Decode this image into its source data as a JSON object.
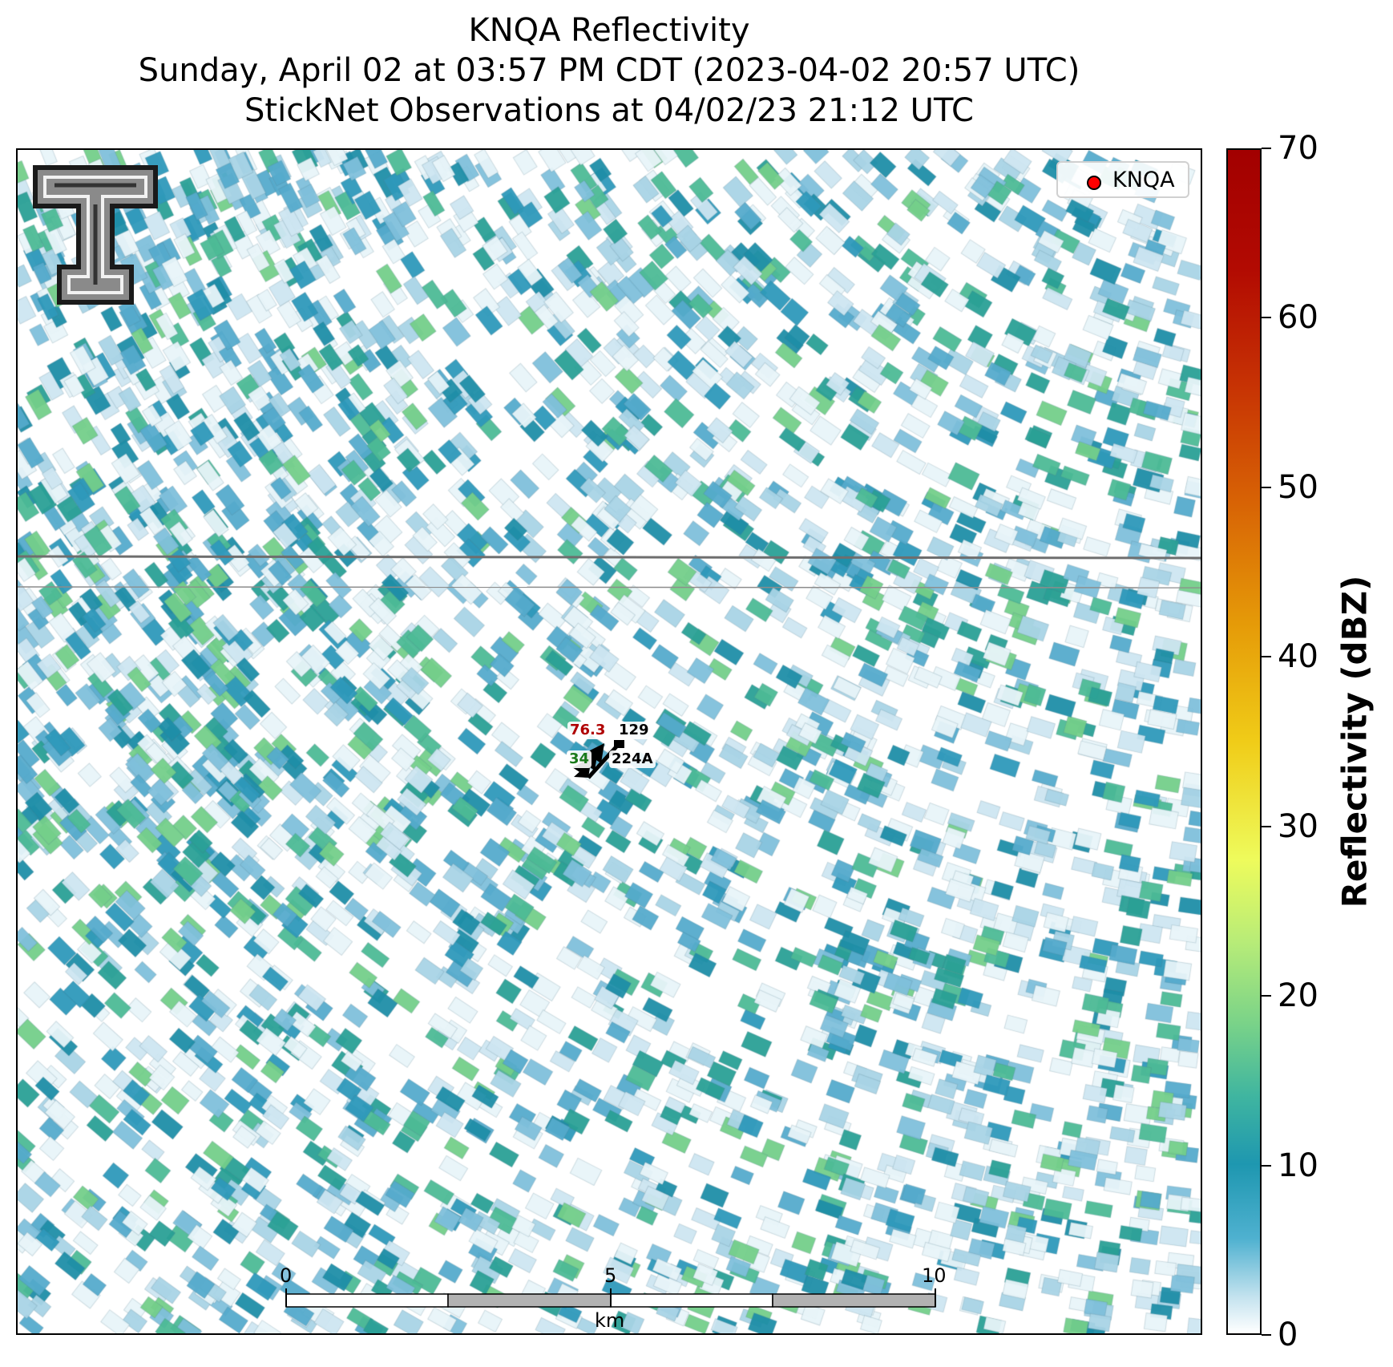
{
  "title": {
    "line1": "KNQA Reflectivity",
    "line2": "Sunday, April 02 at 03:57 PM CDT (2023-04-02 20:57 UTC)",
    "line3": "StickNet Observations at 04/02/23 21:12 UTC"
  },
  "legend": {
    "label": "KNQA",
    "marker_color": "#ff0000"
  },
  "stations": {
    "temp": "76.3",
    "temp_color": "#b00000",
    "id_129": "129",
    "dew": "34",
    "dew_color": "#1a7a1a",
    "id_224A": "224A"
  },
  "scale_bar": {
    "tick_0": "0",
    "tick_5": "5",
    "tick_10": "10",
    "unit": "km"
  },
  "colorbar": {
    "label": "Reflectivity (dBZ)",
    "ticks": [
      "0",
      "10",
      "20",
      "30",
      "40",
      "50",
      "60",
      "70"
    ]
  },
  "colors": {
    "background": "#ffffff",
    "border_line": "#6e6e6e"
  }
}
